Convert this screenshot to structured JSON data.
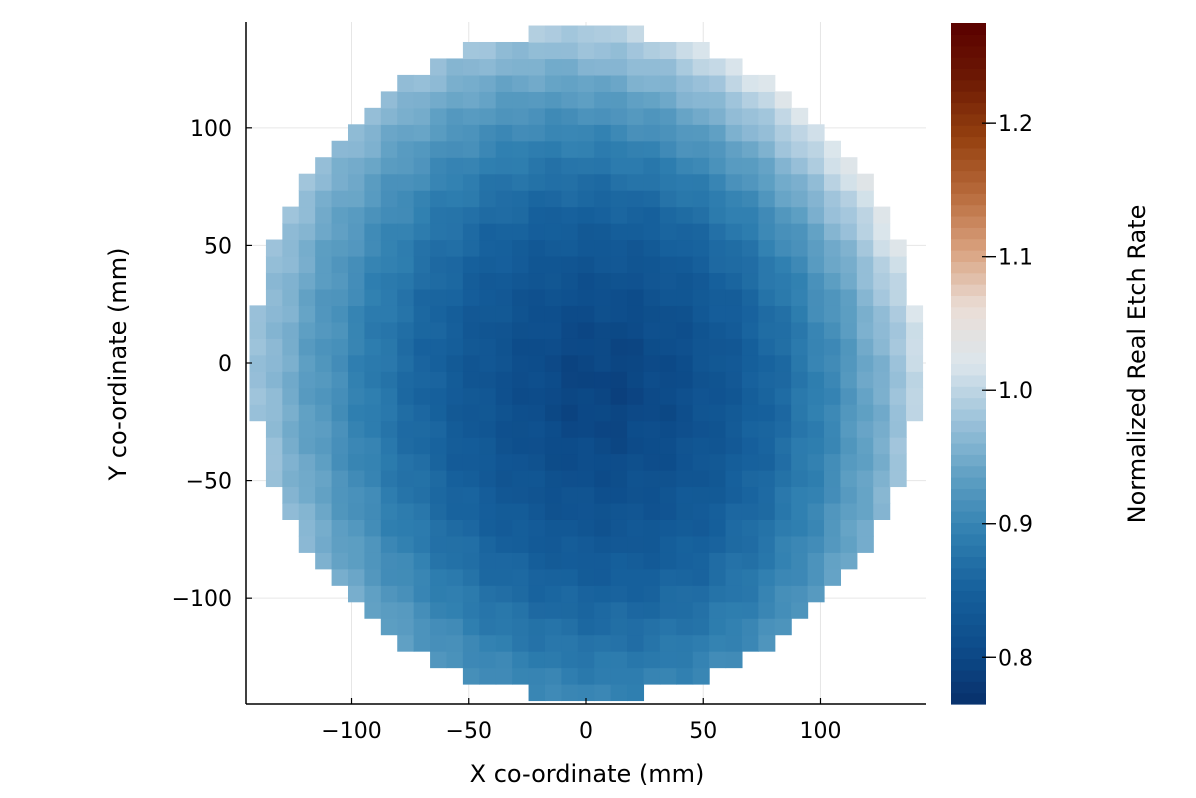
{
  "chart_data": {
    "type": "heatmap",
    "title": "",
    "xlabel": "X co-ordinate (mm)",
    "ylabel": "Y co-ordinate (mm)",
    "colorbar_label": "Normalized Real Etch Rate",
    "xlim": [
      -145,
      145
    ],
    "ylim": [
      -145,
      145
    ],
    "clim": [
      0.765,
      1.275
    ],
    "grid": true,
    "x_ticks": [
      -100,
      -50,
      0,
      50,
      100
    ],
    "x_tick_labels": [
      "−100",
      "−50",
      "0",
      "50",
      "100"
    ],
    "y_ticks": [
      -100,
      -50,
      0,
      50,
      100
    ],
    "y_tick_labels": [
      "−100",
      "−50",
      "0",
      "50",
      "100"
    ],
    "colorbar_ticks": [
      0.8,
      0.9,
      1.0,
      1.1,
      1.2
    ],
    "colorbar_tick_labels": [
      "0.8",
      "0.9",
      "1.0",
      "1.1",
      "1.2"
    ],
    "colorscale": [
      "#08306b",
      "#0d4c8a",
      "#16609c",
      "#2f7fb0",
      "#5e9fc3",
      "#9cc2da",
      "#dce6ec",
      "#eaddd6",
      "#d9a27f",
      "#b86a3b",
      "#94400f",
      "#6d1a04",
      "#5a0000"
    ],
    "grid_spec": {
      "x_start": -140,
      "y_start": -140,
      "cell_size": 7,
      "cols": 41,
      "rows": 41,
      "wafer_radius": 142
    },
    "field_model": {
      "center": [
        8,
        -8
      ],
      "base": 0.795,
      "radial_coefficient": 0.155,
      "radial_exponent": 1.55,
      "radius_scale": 145,
      "edge_lift": [
        {
          "angle_deg": 40,
          "amplitude": 0.085,
          "width_deg": 38
        },
        {
          "angle_deg": -12,
          "amplitude": 0.035,
          "width_deg": 30
        },
        {
          "angle_deg": 200,
          "amplitude": 0.03,
          "width_deg": 40
        }
      ],
      "edge_dip": [
        {
          "angle_deg": 270,
          "amplitude": 0.04,
          "width_deg": 35
        }
      ]
    }
  }
}
